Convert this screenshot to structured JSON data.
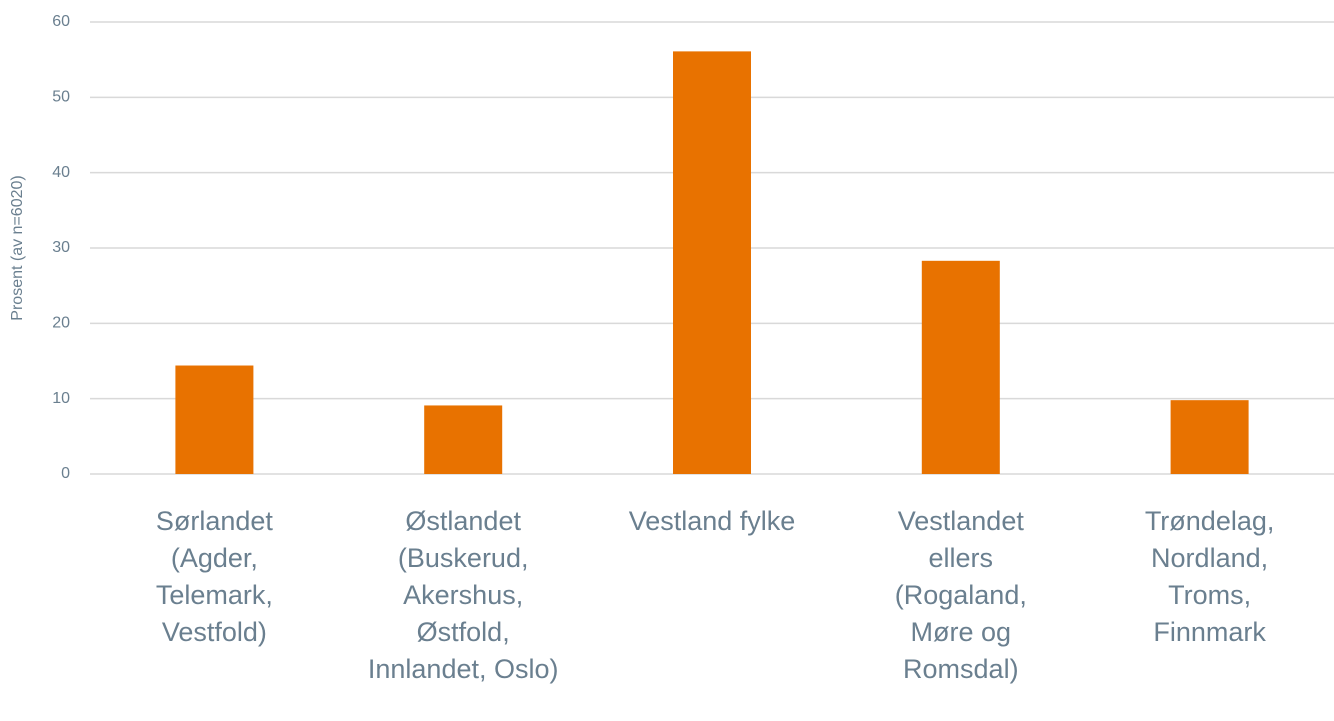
{
  "chart_data": {
    "type": "bar",
    "y_label": "Prosent (av n=6020)",
    "categories": [
      "Sørlandet\n(Agder,\nTelemark,\nVestfold)",
      "Østlandet\n(Buskerud,\nAkershus,\nØstfold,\nInnlandet, Oslo)",
      "Vestland fylke",
      "Vestlandet\nellers\n(Rogaland,\nMøre og\nRomsdal)",
      "Trøndelag,\nNordland,\nTroms,\nFinnmark"
    ],
    "values": [
      14.4,
      9.1,
      56.1,
      28.3,
      9.8
    ],
    "color": "#e87200",
    "ylim": [
      0,
      60
    ],
    "yticks": [
      0,
      10,
      20,
      30,
      40,
      50,
      60
    ],
    "grid": true
  }
}
